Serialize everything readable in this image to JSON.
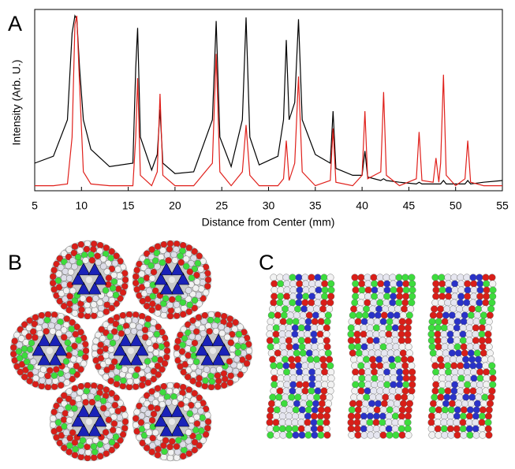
{
  "panel_labels": [
    "A",
    "B",
    "C"
  ],
  "chart_data": {
    "type": "line",
    "xlabel": "Distance from Center (mm)",
    "ylabel": "Intensity (Arb. U.)",
    "x": [
      5,
      7,
      8.5,
      9.0,
      9.3,
      9.5,
      9.8,
      10.2,
      11,
      13,
      15.5,
      15.8,
      16.0,
      16.3,
      17.5,
      18.1,
      18.4,
      18.7,
      20,
      22,
      24.0,
      24.4,
      24.8,
      26,
      27.2,
      27.6,
      28.0,
      29,
      31,
      31.6,
      31.9,
      32.2,
      32.8,
      33.2,
      33.6,
      35,
      36.6,
      36.9,
      37.2,
      39,
      40.0,
      40.3,
      40.6,
      42.0,
      42.3,
      42.6,
      44,
      45.8,
      46.1,
      46.4,
      47.6,
      47.9,
      48.2,
      48.4,
      48.7,
      49.0,
      50,
      51.0,
      51.3,
      51.6,
      53,
      55
    ],
    "series": [
      {
        "color": "#000000",
        "values": [
          15,
          19,
          40,
          90,
          100,
          98,
          70,
          40,
          23,
          13,
          15,
          70,
          93,
          30,
          11,
          20,
          46,
          15,
          9,
          10,
          40,
          97,
          30,
          13,
          40,
          99,
          30,
          14,
          19,
          40,
          86,
          40,
          50,
          98,
          40,
          20,
          15,
          45,
          12,
          8,
          8,
          22,
          7,
          5,
          6,
          5,
          4,
          3,
          4,
          3,
          3,
          3,
          3,
          3,
          5,
          3,
          3,
          3,
          5,
          3,
          4,
          5
        ]
      },
      {
        "color": "#e0201b",
        "values": [
          2,
          2,
          3,
          30,
          95,
          100,
          60,
          10,
          3,
          2,
          2,
          30,
          64,
          8,
          2,
          10,
          55,
          8,
          2,
          2,
          15,
          78,
          10,
          2,
          10,
          37,
          8,
          2,
          2,
          6,
          28,
          5,
          15,
          65,
          10,
          2,
          5,
          35,
          4,
          2,
          8,
          45,
          6,
          10,
          56,
          8,
          2,
          6,
          33,
          5,
          4,
          18,
          4,
          15,
          66,
          8,
          2,
          6,
          28,
          4,
          2,
          2
        ]
      }
    ],
    "xlim": [
      5,
      55
    ],
    "xticks": [
      5,
      10,
      15,
      20,
      25,
      30,
      35,
      40,
      45,
      50,
      55
    ],
    "ylim": [
      0,
      100
    ]
  }
}
